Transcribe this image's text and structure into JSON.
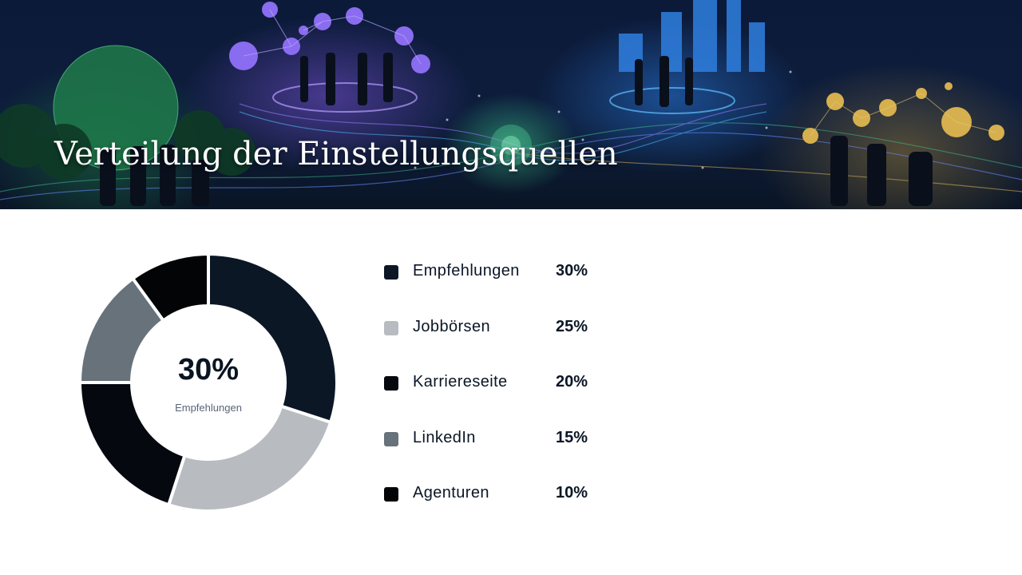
{
  "header": {
    "title": "Verteilung der Einstellungsquellen"
  },
  "colors": {
    "empfehlungen": "#0c1726",
    "jobboersen": "#b8bcc0",
    "karriereseite": "#05080f",
    "linkedin": "#67727b",
    "agenturen": "#030405"
  },
  "chart_data": {
    "type": "pie",
    "categories": [
      "Empfehlungen",
      "Jobbörsen",
      "Karriereseite",
      "LinkedIn",
      "Agenturen"
    ],
    "values": [
      30,
      25,
      20,
      15,
      10
    ],
    "value_labels": [
      "30%",
      "25%",
      "20%",
      "15%",
      "10%"
    ],
    "colors": [
      "#0c1726",
      "#b8bcc0",
      "#05080f",
      "#67727b",
      "#030405"
    ],
    "donut": true,
    "center_value": "30%",
    "center_label": "Empfehlungen",
    "legend_position": "right"
  }
}
